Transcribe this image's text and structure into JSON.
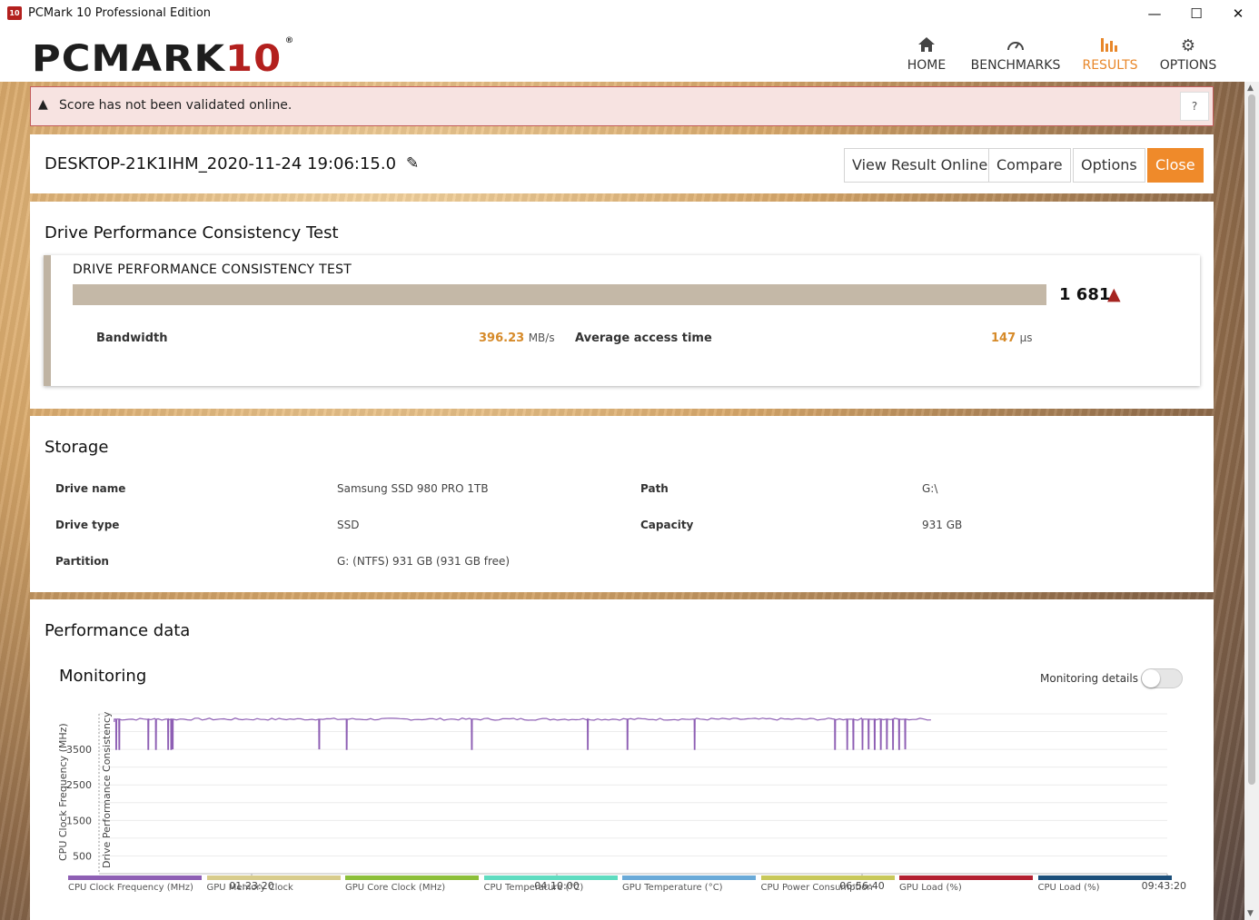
{
  "window": {
    "icon_text": "10",
    "title": "PCMark 10 Professional Edition",
    "minimize": "—",
    "maximize": "☐",
    "close": "✕"
  },
  "logo": {
    "main": "PCMARK",
    "ten": "10",
    "reg": "®"
  },
  "nav": [
    {
      "label": "HOME",
      "icon": "home-icon"
    },
    {
      "label": "BENCHMARKS",
      "icon": "gauge-icon"
    },
    {
      "label": "RESULTS",
      "icon": "bar-chart-icon",
      "active": true
    },
    {
      "label": "OPTIONS",
      "icon": "gear-icon"
    }
  ],
  "warning": {
    "text": "Score has not been validated online.",
    "help": "?"
  },
  "result": {
    "title": "DESKTOP-21K1IHM_2020-11-24 19:06:15.0",
    "buttons": {
      "view_online": "View Result Online",
      "compare": "Compare",
      "options": "Options",
      "close": "Close"
    }
  },
  "drive_test": {
    "section_title": "Drive Performance Consistency Test",
    "card_title": "DRIVE PERFORMANCE CONSISTENCY TEST",
    "score": "1 681",
    "bandwidth_label": "Bandwidth",
    "bandwidth_value": "396.23",
    "bandwidth_unit": "MB/s",
    "access_label": "Average access time",
    "access_value": "147",
    "access_unit": "μs"
  },
  "storage": {
    "section_title": "Storage",
    "drive_name_label": "Drive name",
    "drive_name": "Samsung SSD 980 PRO 1TB",
    "path_label": "Path",
    "path": "G:\\",
    "drive_type_label": "Drive type",
    "drive_type": "SSD",
    "capacity_label": "Capacity",
    "capacity": "931 GB",
    "partition_label": "Partition",
    "partition": "G: (NTFS) 931 GB (931 GB free)"
  },
  "performance": {
    "section_title": "Performance data",
    "monitoring_title": "Monitoring",
    "monitoring_details": "Monitoring details",
    "monitoring_details_on": false
  },
  "chart_data": {
    "type": "line",
    "ylabel": "CPU Clock Frequency (MHz)",
    "ylabel2": "Drive Performance Consistency",
    "y_ticks": [
      "500",
      "1500",
      "2500",
      "3500"
    ],
    "ylim": [
      0,
      4500
    ],
    "x_ticks": [
      "01:23:20",
      "04:10:00",
      "06:56:40",
      "09:43:20"
    ],
    "xlim_seconds": [
      0,
      35000
    ],
    "series": [
      {
        "name": "CPU Clock Frequency (MHz)",
        "color": "#8e5fb4",
        "baseline_mhz": 4350,
        "dips_mhz": 3500,
        "dip_times_seconds": [
          550,
          650,
          1600,
          1850,
          2250,
          2350,
          2400,
          7200,
          8100,
          12200,
          16000,
          17300,
          19500,
          24100,
          24500,
          24700,
          25000,
          25200,
          25400,
          25600,
          25800,
          26000,
          26200,
          26400
        ],
        "end_seconds": 27300
      }
    ],
    "legend": [
      {
        "name": "CPU Clock Frequency (MHz)",
        "color": "#8e5fb4"
      },
      {
        "name": "GPU Memory Clock",
        "color": "#d8cc8c"
      },
      {
        "name": "GPU Core Clock (MHz)",
        "color": "#8cbf3a"
      },
      {
        "name": "CPU Temperature (°C)",
        "color": "#5fdcc0"
      },
      {
        "name": "GPU Temperature (°C)",
        "color": "#6aaad8"
      },
      {
        "name": "CPU Power Consumption",
        "color": "#c8c85a"
      },
      {
        "name": "GPU Load (%)",
        "color": "#b32030"
      },
      {
        "name": "CPU Load (%)",
        "color": "#1c4f7a"
      }
    ]
  },
  "colors": {
    "accent": "#ef8a2a",
    "warning_bg": "#f7e3e1",
    "score_bar": "#c4b8a7",
    "logo_red": "#b3201e"
  }
}
